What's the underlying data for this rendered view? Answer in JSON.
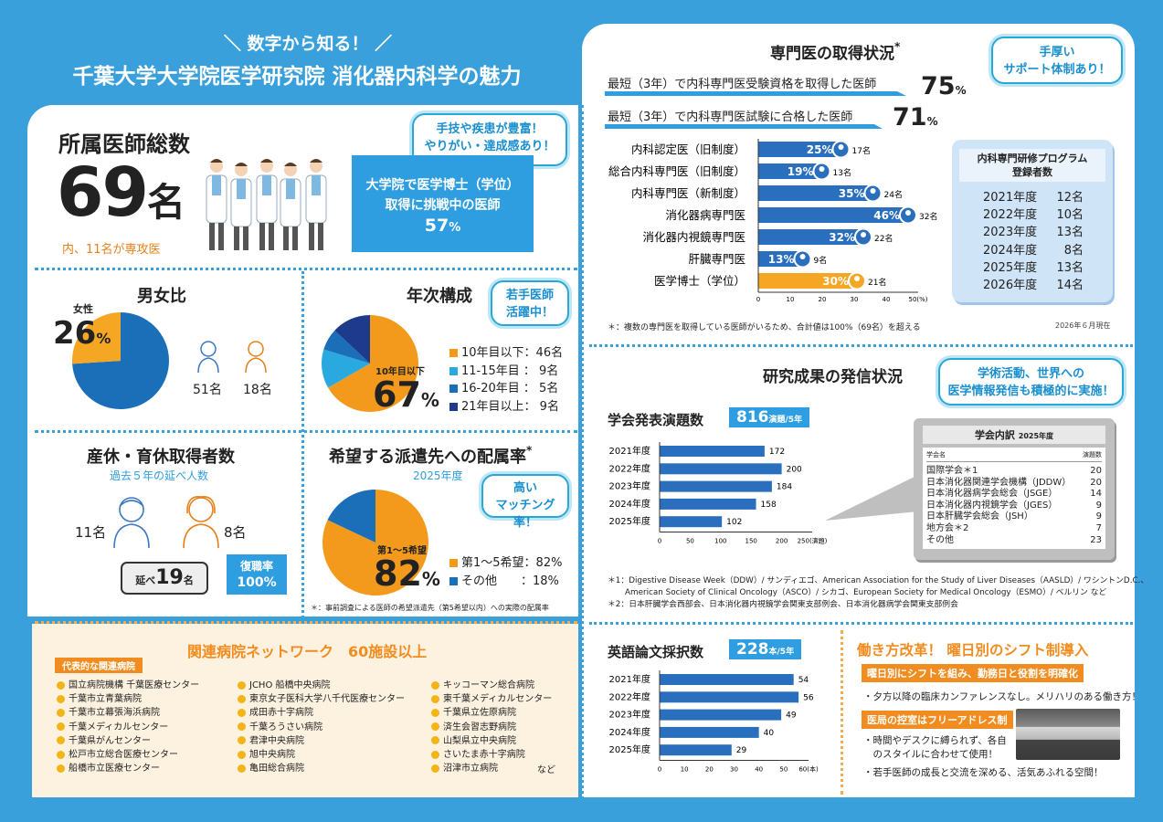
{
  "header": {
    "sub": "＼ 数字から知る！ ／",
    "title": "千葉大学大学院医学研究院 消化器内科学の魅力"
  },
  "doctors": {
    "heading": "所属医師総数",
    "num": "69",
    "unit": "名",
    "sub": "内、11名が専攻医",
    "callout": [
      "手技や疾患が豊富！",
      "やりがい・達成感あり！"
    ],
    "box": [
      "大学院で医学博士（学位）",
      "取得に挑戦中の医師"
    ],
    "box_pct": "57",
    "pct_unit": "%"
  },
  "gender": {
    "heading": "男女比",
    "female_label": "女性",
    "female_pct": "26",
    "pct_unit": "%",
    "male_count": "51名",
    "female_count": "18名",
    "female_fraction": 0.26
  },
  "years": {
    "heading": "年次構成",
    "callout": [
      "若手医師",
      "活躍中！"
    ],
    "center_label": "10年目以下",
    "center_pct": "67",
    "pct_unit": "%",
    "legend": [
      {
        "label": "10年目以下：46名",
        "color": "#f39a1c",
        "value": 46
      },
      {
        "label": "11-15年目 ：  9名",
        "color": "#2aa9e0",
        "value": 9
      },
      {
        "label": "16-20年目 ：  5名",
        "color": "#1b6fb8",
        "value": 5
      },
      {
        "label": "21年目以上：  9名",
        "color": "#1d3a8c",
        "value": 9
      }
    ]
  },
  "leave": {
    "heading": "産休・育休取得者数",
    "sub": "過去５年の延べ人数",
    "male": "11名",
    "female": "8名",
    "total_label": "延べ",
    "total_num": "19",
    "total_unit": "名",
    "return_label": "復職率",
    "return_pct": "100%"
  },
  "dispatch": {
    "heading": "希望する派遣先への配属率",
    "star": "*",
    "year": "2025年度",
    "callout": [
      "高い",
      "マッチング率！"
    ],
    "center_label": "第1〜5希望",
    "center_pct": "82",
    "pct_unit": "%",
    "legend": [
      {
        "label": "第1〜5希望：82%",
        "color": "#f39a1c",
        "value": 82
      },
      {
        "label": "その他　　：18%",
        "color": "#1b6fb8",
        "value": 18
      }
    ],
    "note": "＊：事前調査による医師の希望派遣先（第5希望以内）への実際の配属率"
  },
  "network": {
    "heading": "関連病院ネットワーク　60施設以上",
    "tag": "代表的な関連病院",
    "col1": [
      "国立病院機構 千葉医療センター",
      "千葉市立青葉病院",
      "千葉市立幕張海浜病院",
      "千葉メディカルセンター",
      "千葉県がんセンター",
      "松戸市立総合医療センター",
      "船橋市立医療センター"
    ],
    "col2": [
      "JCHO 船橋中央病院",
      "東京女子医科大学八千代医療センター",
      "成田赤十字病院",
      "千葉ろうさい病院",
      "君津中央病院",
      "旭中央病院",
      "亀田総合病院"
    ],
    "col3": [
      "キッコーマン総合病院",
      "東千葉メディカルセンター",
      "千葉県立佐原病院",
      "済生会習志野病院",
      "山梨県立中央病院",
      "さいたま赤十字病院",
      "沼津市立病院"
    ],
    "etc": "など"
  },
  "specialist": {
    "heading": "専門医の取得状況",
    "star": "*",
    "callout": [
      "手厚い",
      "サポート体制あり！"
    ],
    "line1": "最短（3年）で内科専門医受験資格を取得した医師",
    "line1_pct": "75",
    "line2": "最短（3年）で内科専門医試験に合格した医師",
    "line2_pct": "71",
    "pct_unit": "%",
    "note": "＊：複数の専門医を取得している医師がいるため、合計値は100%（69名）を超える",
    "date": "2026年６月現在"
  },
  "chart_data": [
    {
      "type": "bar",
      "orientation": "horizontal",
      "categories": [
        "内科認定医（旧制度）",
        "総合内科専門医（旧制度）",
        "内科専門医（新制度）",
        "消化器病専門医",
        "消化器内視鏡専門医",
        "肝臓専門医",
        "医学博士（学位）"
      ],
      "values": [
        25,
        19,
        35,
        46,
        32,
        13,
        30
      ],
      "counts": [
        "17名",
        "13名",
        "24名",
        "32名",
        "22名",
        "9名",
        "21名"
      ],
      "unit": "(%)",
      "xlim": [
        0,
        50
      ],
      "xticks": [
        0,
        10,
        20,
        30,
        40,
        50
      ]
    },
    {
      "type": "bar",
      "orientation": "horizontal",
      "title": "学会発表演題数",
      "categories": [
        "2021年度",
        "2022年度",
        "2023年度",
        "2024年度",
        "2025年度"
      ],
      "values": [
        172,
        200,
        184,
        158,
        102
      ],
      "xlim": [
        0,
        250
      ],
      "xticks": [
        0,
        50,
        100,
        150,
        200,
        250
      ],
      "unit": "(演題)"
    },
    {
      "type": "bar",
      "orientation": "horizontal",
      "title": "英語論文採択数",
      "categories": [
        "2021年度",
        "2022年度",
        "2023年度",
        "2024年度",
        "2025年度"
      ],
      "values": [
        54,
        56,
        49,
        40,
        29
      ],
      "xlim": [
        0,
        60
      ],
      "xticks": [
        0,
        10,
        20,
        30,
        40,
        50,
        60
      ],
      "unit": "(本)"
    }
  ],
  "program": {
    "title": [
      "内科専門研修プログラム",
      "登録者数"
    ],
    "rows": [
      {
        "year": "2021年度",
        "n": "12名"
      },
      {
        "year": "2022年度",
        "n": "10名"
      },
      {
        "year": "2023年度",
        "n": "13名"
      },
      {
        "year": "2024年度",
        "n": "8名"
      },
      {
        "year": "2025年度",
        "n": "13名"
      },
      {
        "year": "2026年度",
        "n": "14名"
      }
    ]
  },
  "research": {
    "heading": "研究成果の発信状況",
    "callout": [
      "学術活動、世界への",
      "医学情報発信も積極的に実施！"
    ],
    "conf_title": "学会発表演題数",
    "conf_num": "816",
    "conf_unit": "演題",
    "conf_per": "/5年",
    "paper_title": "英語論文採択数",
    "paper_num": "228",
    "paper_unit": "本",
    "paper_per": "/5年",
    "breakdown_title": "学会内訳",
    "breakdown_year": "2025年度",
    "col_name": "学会名",
    "col_n": "演題数",
    "breakdown": [
      {
        "name": "国際学会＊1",
        "n": "20"
      },
      {
        "name": "日本消化器関連学会機構（JDDW）",
        "n": "20"
      },
      {
        "name": "日本消化器病学会総会（JSGE）",
        "n": "14"
      },
      {
        "name": "日本消化器内視鏡学会（JGES）",
        "n": "9"
      },
      {
        "name": "日本肝臓学会総会（JSH）",
        "n": "9"
      },
      {
        "name": "地方会＊2",
        "n": "7"
      },
      {
        "name": "その他",
        "n": "23"
      }
    ],
    "note1": "＊1：Digestive Disease Week（DDW）/ サンディエゴ、American Association for the Study of Liver Diseases（AASLD）/ ワシントンD.C.、",
    "note1b": "American Society of Clinical Oncology（ASCO）/ シカゴ、European Society for Medical Oncology（ESMO）/ ベルリン など",
    "note2": "＊2：日本肝臓学会西部会、日本消化器内視鏡学会関東支部例会、日本消化器病学会関東支部例会"
  },
  "workstyle": {
    "heading": "働き方改革！ 曜日別のシフト制導入",
    "tag1": "曜日別にシフトを組み、勤務日と役割を明確化",
    "text1": "・夕方以降の臨床カンファレンスなし。メリハリのある働き方！",
    "tag2": "医局の控室はフリーアドレス制",
    "text2a": "・時間やデスクに縛られず、各自",
    "text2b": "　のスタイルに合わせて使用！",
    "text3": "・若手医師の成長と交流を深める、活気あふれる空間！"
  }
}
